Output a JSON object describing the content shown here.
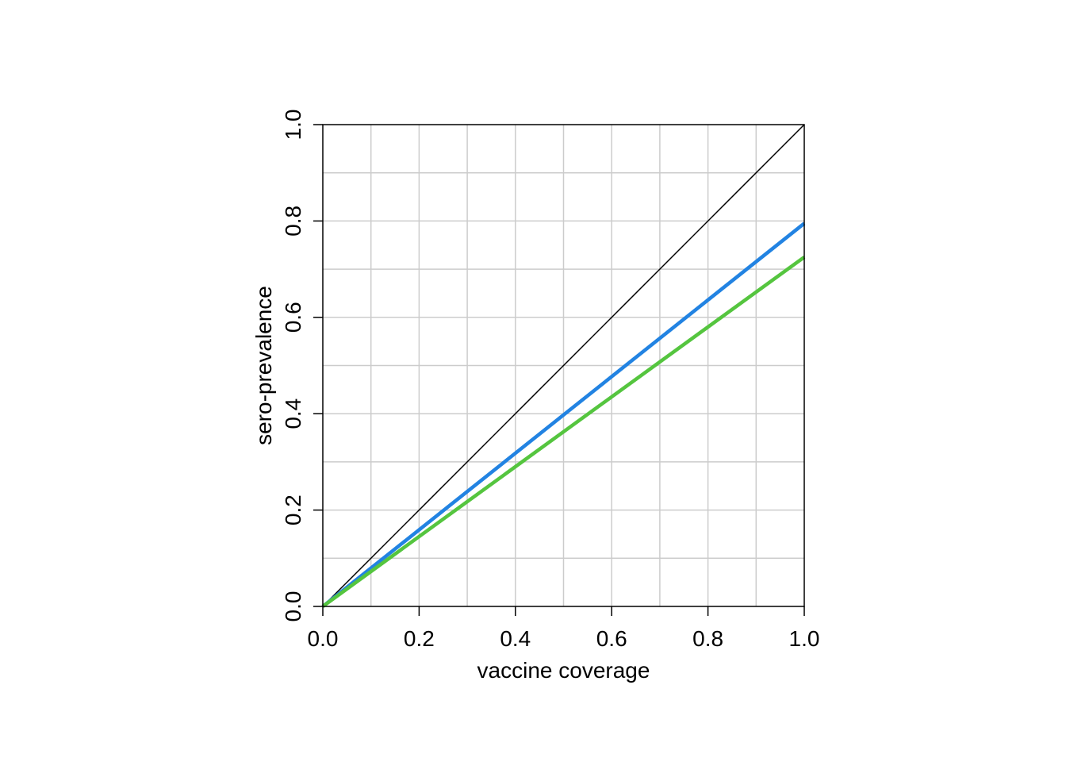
{
  "chart_data": {
    "type": "line",
    "xlabel": "vaccine coverage",
    "ylabel": "sero-prevalence",
    "xlim": [
      0,
      1
    ],
    "ylim": [
      0,
      1
    ],
    "x_ticks": [
      "0.0",
      "0.2",
      "0.4",
      "0.6",
      "0.8",
      "1.0"
    ],
    "y_ticks": [
      "0.0",
      "0.2",
      "0.4",
      "0.6",
      "0.8",
      "1.0"
    ],
    "grid": true,
    "grid_step": 0.1,
    "series": [
      {
        "color": "#000000",
        "x": [
          0,
          1
        ],
        "y": [
          0,
          1
        ]
      },
      {
        "color": "#2283e2",
        "x": [
          0,
          1
        ],
        "y": [
          0,
          0.795
        ]
      },
      {
        "color": "#55c53f",
        "x": [
          0,
          1
        ],
        "y": [
          0,
          0.725
        ]
      }
    ]
  }
}
